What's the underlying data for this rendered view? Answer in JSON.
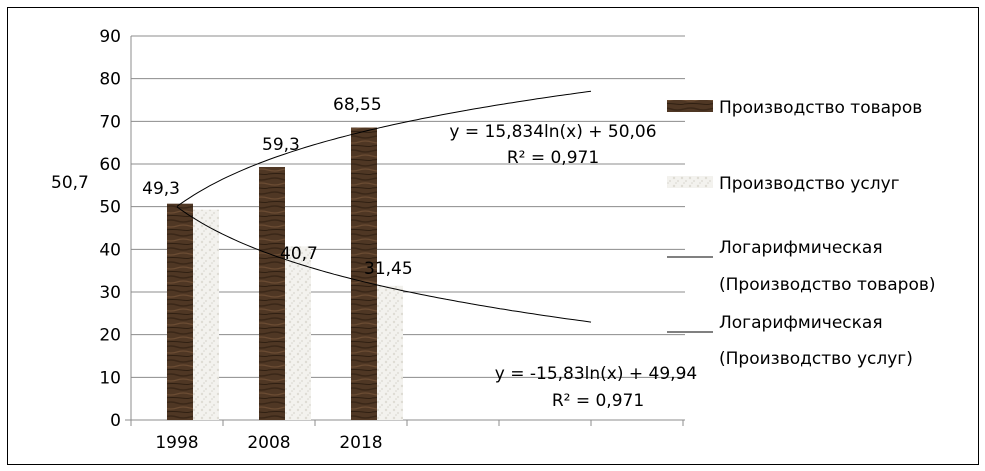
{
  "chart_data": {
    "type": "bar",
    "categories": [
      "1998",
      "2008",
      "2018"
    ],
    "ylim": [
      0,
      90
    ],
    "yticks": [
      0,
      10,
      20,
      30,
      40,
      50,
      60,
      70,
      80,
      90
    ],
    "grid": true,
    "legend_position": "right",
    "series": [
      {
        "name": "Производство товаров",
        "values": [
          50.7,
          59.3,
          68.55
        ],
        "labels": [
          "50,7",
          "59,3",
          "68,55"
        ],
        "color": "#4a3322"
      },
      {
        "name": "Производство услуг",
        "values": [
          49.3,
          40.7,
          31.45
        ],
        "labels": [
          "49,3",
          "40,7",
          "31,45"
        ],
        "color": "#ecebe6"
      }
    ],
    "trendlines": [
      {
        "legend": [
          "Логарифмическая",
          "(Производство товаров)"
        ],
        "a": 15.834,
        "b": 50.06,
        "equation": "y = 15,834ln(x) + 50,06",
        "r2": "R² = 0,971"
      },
      {
        "legend": [
          "Логарифмическая",
          "(Производство услуг)"
        ],
        "a": -15.83,
        "b": 49.94,
        "equation": "y = -15,83ln(x) + 49,94",
        "r2": "R² = 0,971"
      }
    ]
  }
}
